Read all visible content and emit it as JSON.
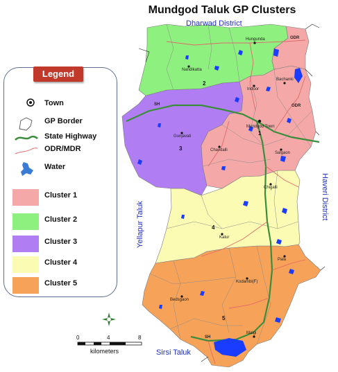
{
  "title": "Mundgod Taluk GP Clusters",
  "regions": {
    "north": "Dharwad District",
    "west": "Yellapur Taluk",
    "east": "Haveri District",
    "south": "Sirsi Taluk"
  },
  "legend": {
    "title": "Legend",
    "items": [
      {
        "label": "Town",
        "symbol": "town-icon"
      },
      {
        "label": "GP Border",
        "symbol": "gp-border-icon"
      },
      {
        "label": "State Highway",
        "symbol": "state-highway-icon"
      },
      {
        "label": "ODR/MDR",
        "symbol": "odr-mdr-icon"
      },
      {
        "label": "Water",
        "symbol": "water-icon"
      },
      {
        "label": "Cluster 1",
        "color": "#f4a9a8"
      },
      {
        "label": "Cluster 2",
        "color": "#8ef07e"
      },
      {
        "label": "Cluster 3",
        "color": "#b07ef2"
      },
      {
        "label": "Cluster 4",
        "color": "#fbfbb4"
      },
      {
        "label": "Cluster 5",
        "color": "#f7a259"
      }
    ]
  },
  "colors": {
    "state_highway": "#3a8d3a",
    "odr_mdr": "#e06a6a",
    "water": "#1a3cff",
    "gp_border": "#7a7a7a",
    "region_text": "#1f2fbf"
  },
  "towns": [
    "Hungunda",
    "Nandikatta",
    "Indoor",
    "Bachanki",
    "Gunjavati",
    "Mundgod Town",
    "Chavdalli",
    "Salgaon",
    "Chigalli",
    "Katur",
    "Pala",
    "Kodambi(F)",
    "Bedsgaon",
    "Malgi"
  ],
  "road_labels": [
    "ODR",
    "SH",
    "ODR",
    "SH"
  ],
  "cluster_numbers": [
    "1",
    "2",
    "3",
    "4",
    "5"
  ],
  "scale": {
    "ticks": [
      "0",
      "4",
      "8"
    ],
    "unit": "kilometers"
  },
  "north_arrow": "north-arrow-icon"
}
